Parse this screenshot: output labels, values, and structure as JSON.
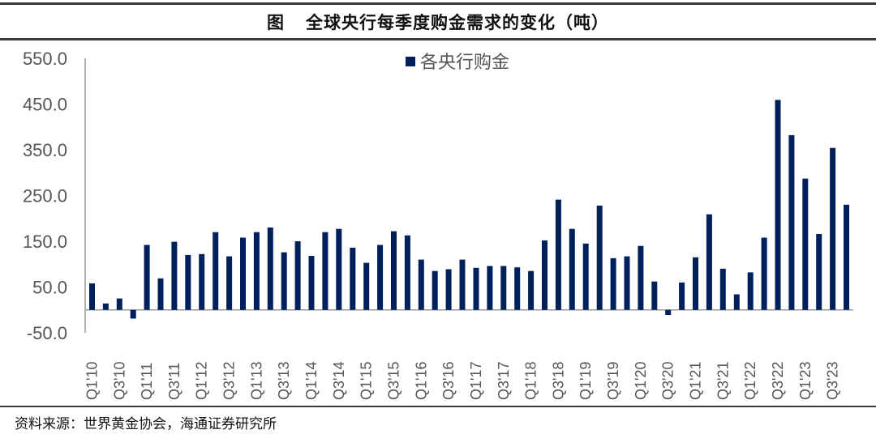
{
  "header": {
    "figure_label": "图",
    "title": "全球央行每季度购金需求的变化（吨）"
  },
  "footer": {
    "source": "资料来源：世界黄金协会，海通证券研究所"
  },
  "colors": {
    "bar": "#00205B",
    "axis": "#999999",
    "rule": "#3a3a3a"
  },
  "chart_data": {
    "type": "bar",
    "title": "全球央行每季度购金需求的变化（吨）",
    "xlabel": "",
    "ylabel": "",
    "unit": "吨",
    "ylim": [
      -50,
      550
    ],
    "yticks": [
      -50,
      50,
      150,
      250,
      350,
      450,
      550
    ],
    "ytick_labels": [
      "-50.0",
      "50.0",
      "150.0",
      "250.0",
      "350.0",
      "450.0",
      "550.0"
    ],
    "grid": false,
    "legend_position": "top-center",
    "categories": [
      "Q1'10",
      "Q2'10",
      "Q3'10",
      "Q4'10",
      "Q1'11",
      "Q2'11",
      "Q3'11",
      "Q4'11",
      "Q1'12",
      "Q2'12",
      "Q3'12",
      "Q4'12",
      "Q1'13",
      "Q2'13",
      "Q3'13",
      "Q4'13",
      "Q1'14",
      "Q2'14",
      "Q3'14",
      "Q4'14",
      "Q1'15",
      "Q2'15",
      "Q3'15",
      "Q4'15",
      "Q1'16",
      "Q2'16",
      "Q3'16",
      "Q4'16",
      "Q1'17",
      "Q2'17",
      "Q3'17",
      "Q4'17",
      "Q1'18",
      "Q2'18",
      "Q3'18",
      "Q4'18",
      "Q1'19",
      "Q2'19",
      "Q3'19",
      "Q4'19",
      "Q1'20",
      "Q2'20",
      "Q3'20",
      "Q4'20",
      "Q1'21",
      "Q2'21",
      "Q3'21",
      "Q4'21",
      "Q1'22",
      "Q2'22",
      "Q3'22",
      "Q4'22",
      "Q1'23",
      "Q2'23",
      "Q3'23",
      "Q4'23"
    ],
    "visible_tick_labels": [
      "Q1'10",
      "Q3'10",
      "Q1'11",
      "Q3'11",
      "Q1'12",
      "Q3'12",
      "Q1'13",
      "Q3'13",
      "Q1'14",
      "Q3'14",
      "Q1'15",
      "Q3'15",
      "Q1'16",
      "Q3'16",
      "Q1'17",
      "Q3'17",
      "Q1'18",
      "Q3'18",
      "Q1'19",
      "Q3'19",
      "Q1'20",
      "Q3'20",
      "Q1'21",
      "Q3'21",
      "Q1'22",
      "Q3'22",
      "Q1'23",
      "Q3'23"
    ],
    "series": [
      {
        "name": "各央行购金",
        "color": "#00205B",
        "values": [
          58,
          14,
          25,
          -19,
          142,
          69,
          149,
          120,
          122,
          170,
          117,
          158,
          170,
          180,
          126,
          150,
          118,
          170,
          177,
          136,
          103,
          142,
          172,
          163,
          110,
          85,
          89,
          110,
          92,
          96,
          96,
          93,
          85,
          152,
          241,
          177,
          145,
          228,
          113,
          117,
          140,
          62,
          -11,
          60,
          115,
          209,
          90,
          34,
          82,
          158,
          459,
          382,
          287,
          166,
          354,
          230
        ]
      }
    ]
  }
}
